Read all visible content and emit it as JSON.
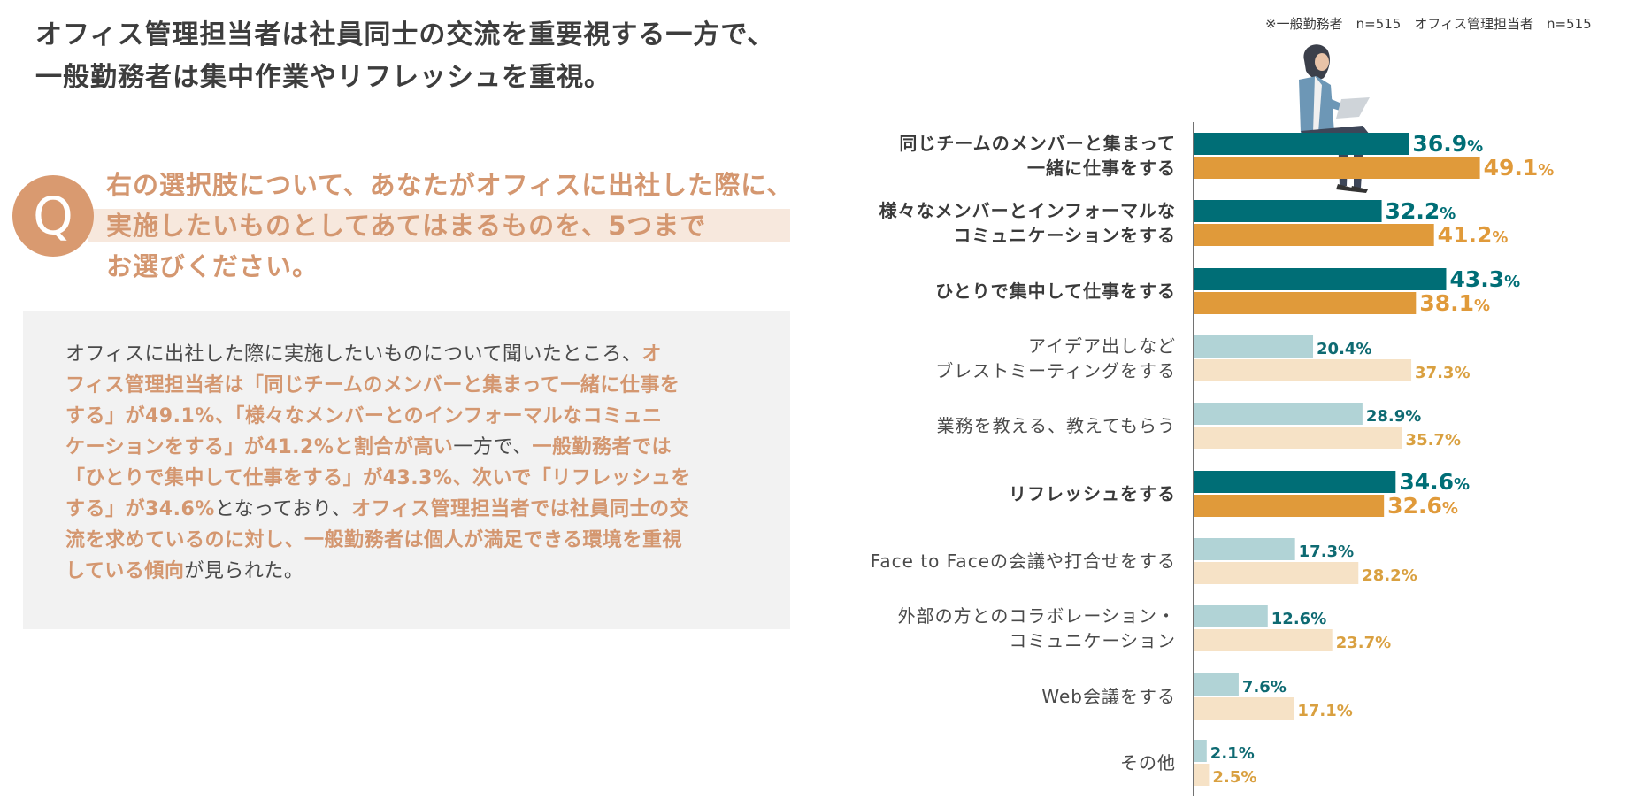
{
  "headline": {
    "line1": "オフィス管理担当者は社員同士の交流を重要視する一方で、",
    "line2": "一般勤務者は集中作業やリフレッシュを重視。"
  },
  "question": {
    "badge": "Q",
    "line1": "右の選択肢について、あなたがオフィスに出社した際に、",
    "line2": "実施したいものとしてあてはまるものを、5つまで",
    "line3": "お選びください。"
  },
  "summary": {
    "l1a": "オフィスに出社した際に実施したいものについて聞いたところ、",
    "l1b": "オ",
    "l2": "フィス管理担当者は「同じチームのメンバーと集まって一緒に仕事を",
    "l3": "する」が49.1%、「様々なメンバーとのインフォーマルなコミュニ",
    "l4a": "ケーションをする」が41.2%と割合が高い",
    "l4b": "一方で、",
    "l4c": "一般勤務者では",
    "l5": "「ひとりで集中して仕事をする」が43.3%、次いで「リフレッシュを",
    "l6a": "する」が34.6%",
    "l6b": "となっており、",
    "l6c": "オフィス管理担当者では社員同士の交",
    "l7": "流を求めているのに対し、一般勤務者は個人が満足できる環境を重視",
    "l8a": "している傾向",
    "l8b": "が見られた。"
  },
  "note": "※一般勤務者　n=515　オフィス管理担当者　n=515",
  "colors": {
    "general_strong": "#006e76",
    "admin_strong": "#e09a3a",
    "general_light": "#b1d3d6",
    "admin_light": "#f6e2c6",
    "general_label_light": "#0e6a72",
    "admin_label_light": "#d9a040",
    "accent": "#d49770"
  },
  "chart_data": {
    "type": "bar",
    "orientation": "horizontal",
    "xlim": [
      0,
      55
    ],
    "categories": [
      {
        "line1": "同じチームのメンバーと集まって",
        "line2": "一緒に仕事をする",
        "emphasis": true
      },
      {
        "line1": "様々なメンバーとインフォーマルな",
        "line2": "コミュニケーションをする",
        "emphasis": true
      },
      {
        "line1": "ひとりで集中して仕事をする",
        "line2": "",
        "emphasis": true
      },
      {
        "line1": "アイデア出しなど",
        "line2": "ブレストミーティングをする",
        "emphasis": false
      },
      {
        "line1": "業務を教える、教えてもらう",
        "line2": "",
        "emphasis": false
      },
      {
        "line1": "リフレッシュをする",
        "line2": "",
        "emphasis": true
      },
      {
        "line1": "Face to Faceの会議や打合せをする",
        "line2": "",
        "emphasis": false
      },
      {
        "line1": "外部の方とのコラボレーション・",
        "line2": "コミュニケーション",
        "emphasis": false
      },
      {
        "line1": "Web会議をする",
        "line2": "",
        "emphasis": false
      },
      {
        "line1": "その他",
        "line2": "",
        "emphasis": false
      }
    ],
    "series": [
      {
        "name": "一般勤務者",
        "values": [
          36.9,
          32.2,
          43.3,
          20.4,
          28.9,
          34.6,
          17.3,
          12.6,
          7.6,
          2.1
        ]
      },
      {
        "name": "オフィス管理担当者",
        "values": [
          49.1,
          41.2,
          38.1,
          37.3,
          35.7,
          32.6,
          28.2,
          23.7,
          17.1,
          2.5
        ]
      }
    ],
    "unit": "%",
    "legend": "top-right"
  }
}
